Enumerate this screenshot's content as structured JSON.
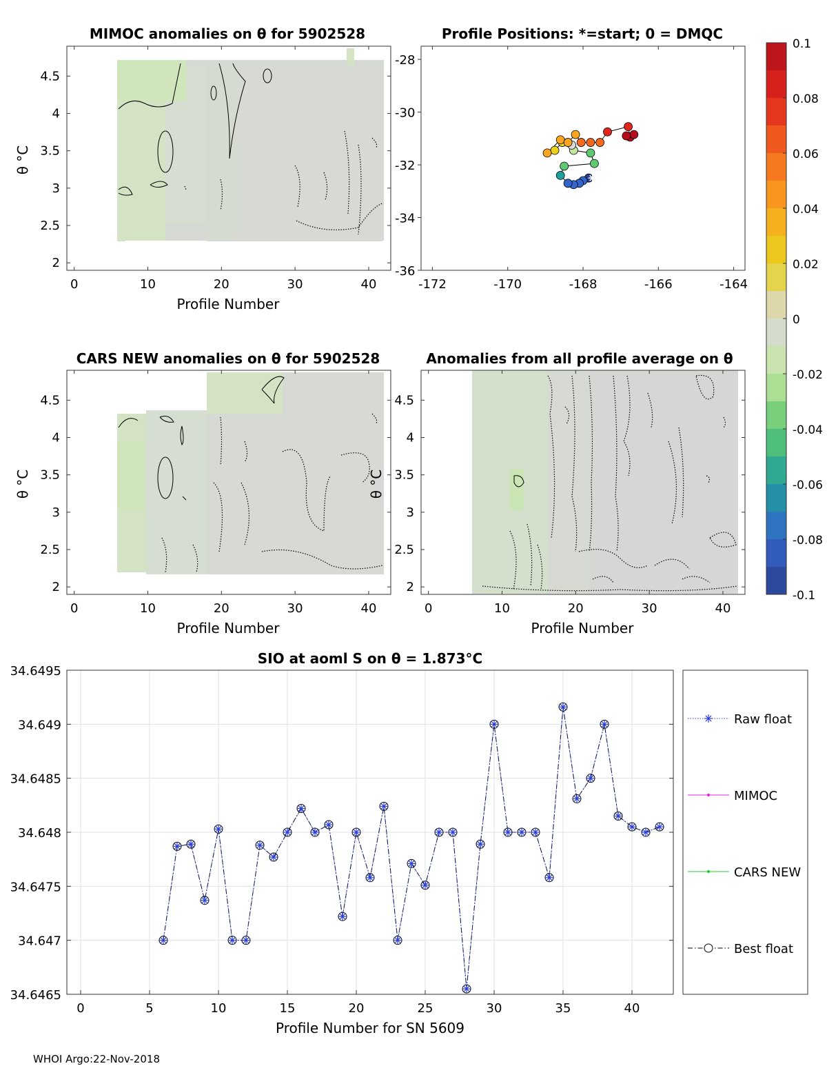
{
  "footer": "WHOI Argo:22-Nov-2018",
  "panels": {
    "mimoc": {
      "title": "MIMOC anomalies on θ  for 5902528",
      "xlabel": "Profile Number",
      "ylabel": "θ °C",
      "xticks": [
        "0",
        "10",
        "20",
        "30",
        "40"
      ],
      "yticks": [
        "2",
        "2.5",
        "3",
        "3.5",
        "4",
        "4.5"
      ]
    },
    "positions": {
      "title": "Profile Positions: *=start; 0 = DMQC",
      "xticks": [
        "-172",
        "-170",
        "-168",
        "-166",
        "-164"
      ],
      "yticks": [
        "-28",
        "-30",
        "-32",
        "-34",
        "-36"
      ]
    },
    "cars": {
      "title": "CARS NEW anomalies on θ for 5902528",
      "xlabel": "Profile Number",
      "ylabel": "θ °C",
      "xticks": [
        "0",
        "10",
        "20",
        "30",
        "40"
      ],
      "yticks": [
        "2",
        "2.5",
        "3",
        "3.5",
        "4",
        "4.5"
      ]
    },
    "allprof": {
      "title": "Anomalies from all profile average on θ",
      "xlabel": "Profile Number",
      "ylabel": "θ °C",
      "xticks": [
        "0",
        "10",
        "20",
        "30",
        "40"
      ],
      "yticks": [
        "2",
        "2.5",
        "3",
        "3.5",
        "4",
        "4.5"
      ]
    },
    "colorbar": {
      "ticks": [
        "0.1",
        "0.08",
        "0.06",
        "0.04",
        "0.02",
        "0",
        "-0.02",
        "-0.04",
        "-0.06",
        "-0.08",
        "-0.1"
      ],
      "colors": [
        "#b30e1a",
        "#e0261c",
        "#f56a1f",
        "#f9a51f",
        "#e8d21c",
        "#d9d9d9",
        "#c3e6a0",
        "#5fc870",
        "#1f9e9c",
        "#3366cc",
        "#2b3f8f"
      ]
    }
  },
  "legend": {
    "items": [
      {
        "label": "Raw float",
        "color": "#2b3fd6",
        "style": "dotted",
        "marker": "*"
      },
      {
        "label": "MIMOC",
        "color": "#e020e0",
        "style": "solid",
        "marker": "."
      },
      {
        "label": "CARS NEW",
        "color": "#20d020",
        "style": "solid",
        "marker": "."
      },
      {
        "label": "Best float",
        "color": "#000000",
        "style": "dashdot",
        "marker": "o"
      }
    ]
  },
  "positions_data": {
    "points": [
      {
        "lon": -167.85,
        "lat": -32.5,
        "c": -0.09
      },
      {
        "lon": -168.0,
        "lat": -32.6,
        "c": -0.085
      },
      {
        "lon": -168.1,
        "lat": -32.7,
        "c": -0.08
      },
      {
        "lon": -168.25,
        "lat": -32.75,
        "c": -0.075
      },
      {
        "lon": -168.4,
        "lat": -32.7,
        "c": -0.07
      },
      {
        "lon": -168.6,
        "lat": -32.4,
        "c": -0.05
      },
      {
        "lon": -168.5,
        "lat": -32.05,
        "c": -0.04
      },
      {
        "lon": -167.7,
        "lat": -31.95,
        "c": -0.035
      },
      {
        "lon": -167.8,
        "lat": -31.55,
        "c": -0.03
      },
      {
        "lon": -168.25,
        "lat": -31.45,
        "c": -0.02
      },
      {
        "lon": -168.3,
        "lat": -31.25,
        "c": -0.01
      },
      {
        "lon": -168.55,
        "lat": -31.15,
        "c": 0.02
      },
      {
        "lon": -168.75,
        "lat": -31.45,
        "c": 0.03
      },
      {
        "lon": -168.95,
        "lat": -31.55,
        "c": 0.035
      },
      {
        "lon": -168.6,
        "lat": -31.05,
        "c": 0.04
      },
      {
        "lon": -168.4,
        "lat": -31.15,
        "c": 0.045
      },
      {
        "lon": -168.2,
        "lat": -30.85,
        "c": 0.05
      },
      {
        "lon": -168.05,
        "lat": -31.15,
        "c": 0.06
      },
      {
        "lon": -167.8,
        "lat": -31.15,
        "c": 0.065
      },
      {
        "lon": -167.55,
        "lat": -31.15,
        "c": 0.07
      },
      {
        "lon": -167.35,
        "lat": -30.75,
        "c": 0.075
      },
      {
        "lon": -166.8,
        "lat": -30.55,
        "c": 0.085
      },
      {
        "lon": -166.75,
        "lat": -30.95,
        "c": 0.095
      },
      {
        "lon": -166.65,
        "lat": -30.85,
        "c": 0.1
      },
      {
        "lon": -166.85,
        "lat": -30.9,
        "c": 0.1
      }
    ],
    "start": {
      "lon": -167.75,
      "lat": -32.5
    }
  },
  "chart_data": {
    "type": "line",
    "title": "SIO at aoml S on θ = 1.873°C",
    "xlabel": "Profile Number for SN 5609",
    "ylabel": "",
    "xlim": [
      -1,
      43
    ],
    "ylim": [
      34.6465,
      34.6495
    ],
    "xticks": [
      "0",
      "5",
      "10",
      "15",
      "20",
      "25",
      "30",
      "35",
      "40"
    ],
    "yticks": [
      "34.6465",
      "34.647",
      "34.6475",
      "34.648",
      "34.6485",
      "34.649",
      "34.6495"
    ],
    "x": [
      6,
      7,
      8,
      9,
      10,
      11,
      12,
      13,
      14,
      15,
      16,
      17,
      18,
      19,
      20,
      21,
      22,
      23,
      24,
      25,
      26,
      27,
      28,
      29,
      30,
      31,
      32,
      33,
      34,
      35,
      36,
      37,
      38,
      39,
      40,
      41,
      42
    ],
    "series": [
      {
        "name": "Raw float",
        "values": [
          34.647,
          34.64787,
          34.64789,
          34.64737,
          34.64803,
          34.647,
          34.647,
          34.64788,
          34.64777,
          34.648,
          34.64822,
          34.648,
          34.64807,
          34.64722,
          34.648,
          34.64758,
          34.64824,
          34.647,
          34.64771,
          34.64751,
          34.648,
          34.648,
          34.64655,
          34.64789,
          34.649,
          34.648,
          34.648,
          34.648,
          34.64758,
          34.64916,
          34.64831,
          34.6485,
          34.649,
          34.64815,
          34.64805,
          34.648,
          34.64805
        ]
      },
      {
        "name": "Best float",
        "values": [
          34.647,
          34.64787,
          34.64789,
          34.64737,
          34.64803,
          34.647,
          34.647,
          34.64788,
          34.64777,
          34.648,
          34.64822,
          34.648,
          34.64807,
          34.64722,
          34.648,
          34.64758,
          34.64824,
          34.647,
          34.64771,
          34.64751,
          34.648,
          34.648,
          34.64655,
          34.64789,
          34.649,
          34.648,
          34.648,
          34.648,
          34.64758,
          34.64916,
          34.64831,
          34.6485,
          34.649,
          34.64815,
          34.64805,
          34.648,
          34.64805
        ]
      }
    ]
  }
}
